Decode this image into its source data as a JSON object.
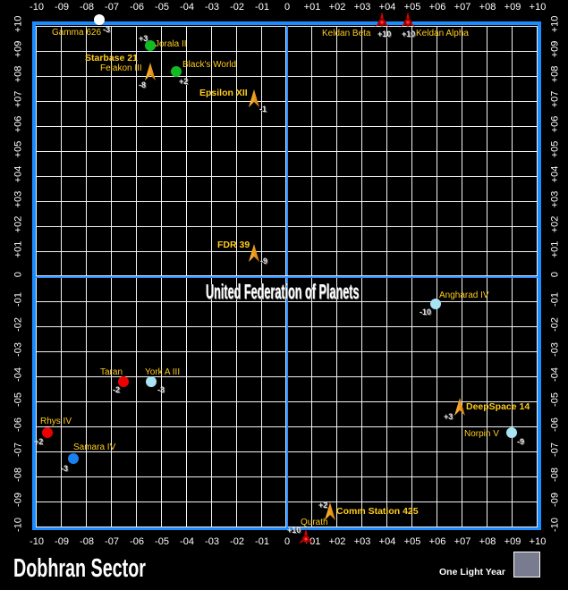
{
  "map": {
    "title": "Dobhran Sector",
    "region_label": "United Federation of Planets",
    "scale_label": "One Light Year",
    "colors": {
      "border": "#1a8cff",
      "grid": "#f2f2f2",
      "label": "#ffcc1a",
      "scale_box": "#787c8e"
    }
  },
  "axes": {
    "x_labels": [
      "-10",
      "-09",
      "-08",
      "-07",
      "-06",
      "-05",
      "-04",
      "-03",
      "-02",
      "-01",
      "0",
      "+01",
      "+02",
      "+03",
      "+04",
      "+05",
      "+06",
      "+07",
      "+08",
      "+09",
      "+10"
    ],
    "y_labels": [
      "+10",
      "+09",
      "+08",
      "+07",
      "+06",
      "+05",
      "+04",
      "+03",
      "+02",
      "+01",
      "0",
      "-01",
      "-02",
      "-03",
      "-04",
      "-05",
      "-06",
      "-07",
      "-08",
      "-09",
      "-10"
    ]
  },
  "objects": [
    {
      "name": "Gamma 626",
      "type": "planet",
      "color": "#ffffff",
      "elev": "-3"
    },
    {
      "name": "Jorala II",
      "type": "planet",
      "color": "#11bb22",
      "elev": "+3"
    },
    {
      "name": "Starbase 21",
      "sublabel": "Felakon III",
      "type": "starbase",
      "elev": "-8"
    },
    {
      "name": "Black's World",
      "type": "planet",
      "color": "#11bb22",
      "elev": "+2"
    },
    {
      "name": "Epsilon XII",
      "type": "starbase",
      "elev": "-1"
    },
    {
      "name": "FDR 39",
      "type": "starbase",
      "elev": "-9"
    },
    {
      "name": "Angharad IV",
      "type": "planet",
      "color": "#a8e4f4",
      "elev": "-10"
    },
    {
      "name": "Taran",
      "type": "planet",
      "color": "#ee0000",
      "elev": "-2"
    },
    {
      "name": "York A III",
      "type": "planet",
      "color": "#a8e4f4",
      "elev": "-3"
    },
    {
      "name": "DeepSpace 14",
      "type": "starbase",
      "elev": "+3"
    },
    {
      "name": "Rhys IV",
      "type": "planet",
      "color": "#ee0000",
      "elev": "+2"
    },
    {
      "name": "Norpin V",
      "type": "planet",
      "color": "#a8e4f4",
      "elev": "-9"
    },
    {
      "name": "Samara IV",
      "type": "planet",
      "color": "#1a80f0",
      "elev": "-3"
    },
    {
      "name": "Comm Station 425",
      "type": "starbase",
      "elev": "+2"
    },
    {
      "name": "Qurath",
      "type": "klingon",
      "elev": "+10"
    },
    {
      "name": "Keldan Beta",
      "type": "klingon",
      "elev": "+10"
    },
    {
      "name": "Keldan Alpha",
      "type": "klingon",
      "elev": "+10"
    }
  ]
}
